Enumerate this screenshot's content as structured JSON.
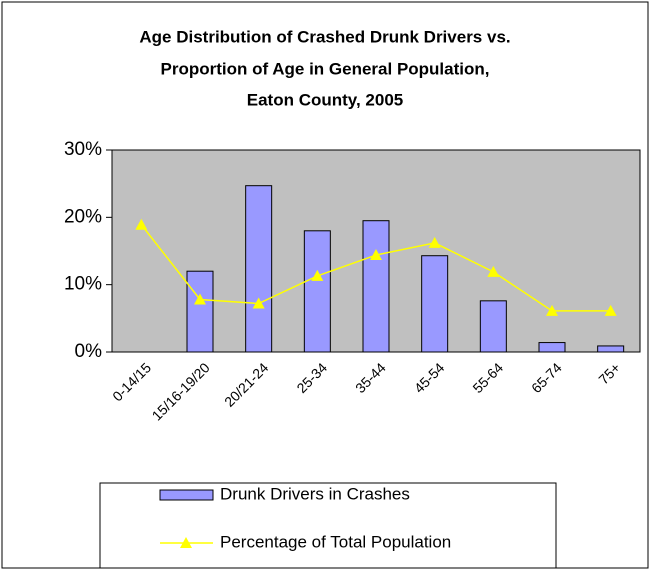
{
  "chart_data": {
    "type": "bar",
    "title": [
      "Age Distribution of Crashed Drunk Drivers vs.",
      "Proportion of Age in General Population,",
      "Eaton County, 2005"
    ],
    "categories": [
      "0-14/15",
      "15/16-19/20",
      "20/21-24",
      "25-34",
      "35-44",
      "45-54",
      "55-64",
      "65-74",
      "75+"
    ],
    "series": [
      {
        "name": "Drunk Drivers in Crashes",
        "type": "bar",
        "color": "#9999ff",
        "values": [
          0,
          12,
          24.7,
          18,
          19.5,
          14.3,
          7.6,
          1.4,
          0.9
        ]
      },
      {
        "name": "Percentage of Total Population",
        "type": "line",
        "color": "#ffff00",
        "values": [
          18.9,
          7.8,
          7.2,
          11.3,
          14.4,
          16.2,
          11.9,
          6.1,
          6.1
        ]
      }
    ],
    "ylim": [
      0,
      30
    ],
    "yticks": [
      {
        "value": 0,
        "label": "0%"
      },
      {
        "value": 10,
        "label": "10%"
      },
      {
        "value": 20,
        "label": "20%"
      },
      {
        "value": 30,
        "label": "30%"
      }
    ],
    "grid": false,
    "plot_background": "#c0c0c0",
    "legend": "bottom"
  }
}
